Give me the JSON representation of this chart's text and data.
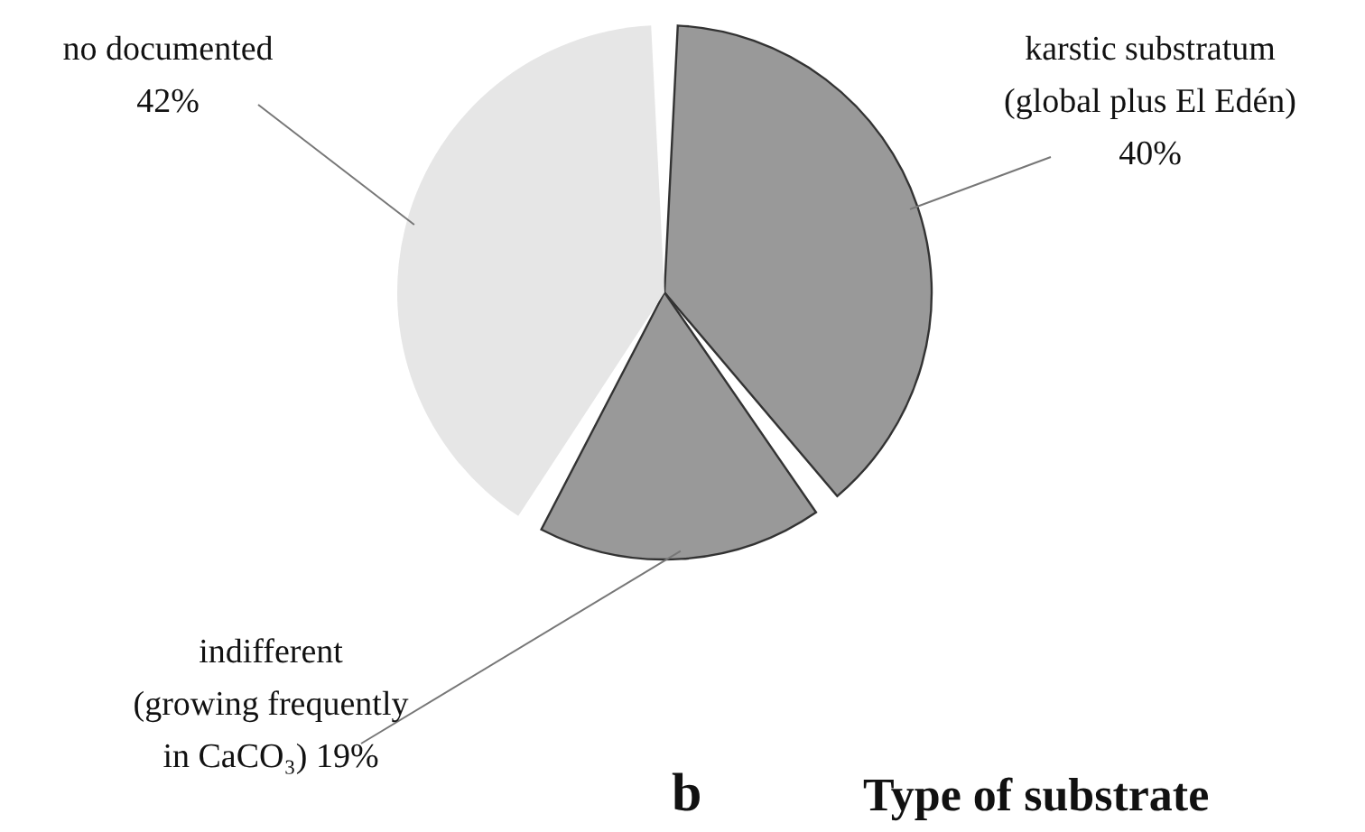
{
  "chart_data": {
    "type": "pie",
    "title": "Type of substrate",
    "categories": [
      "karstic substratum\n(global plus El Edén)",
      "indifferent\n(growing frequently\nin CaCO₃)",
      "no documented"
    ],
    "values": [
      40,
      19,
      42
    ],
    "value_labels": [
      "40%",
      "19%",
      "42%"
    ],
    "colors": [
      "#999999",
      "#999999",
      "#e6e6e6"
    ],
    "annotations": [
      "b"
    ],
    "legend": false
  }
}
